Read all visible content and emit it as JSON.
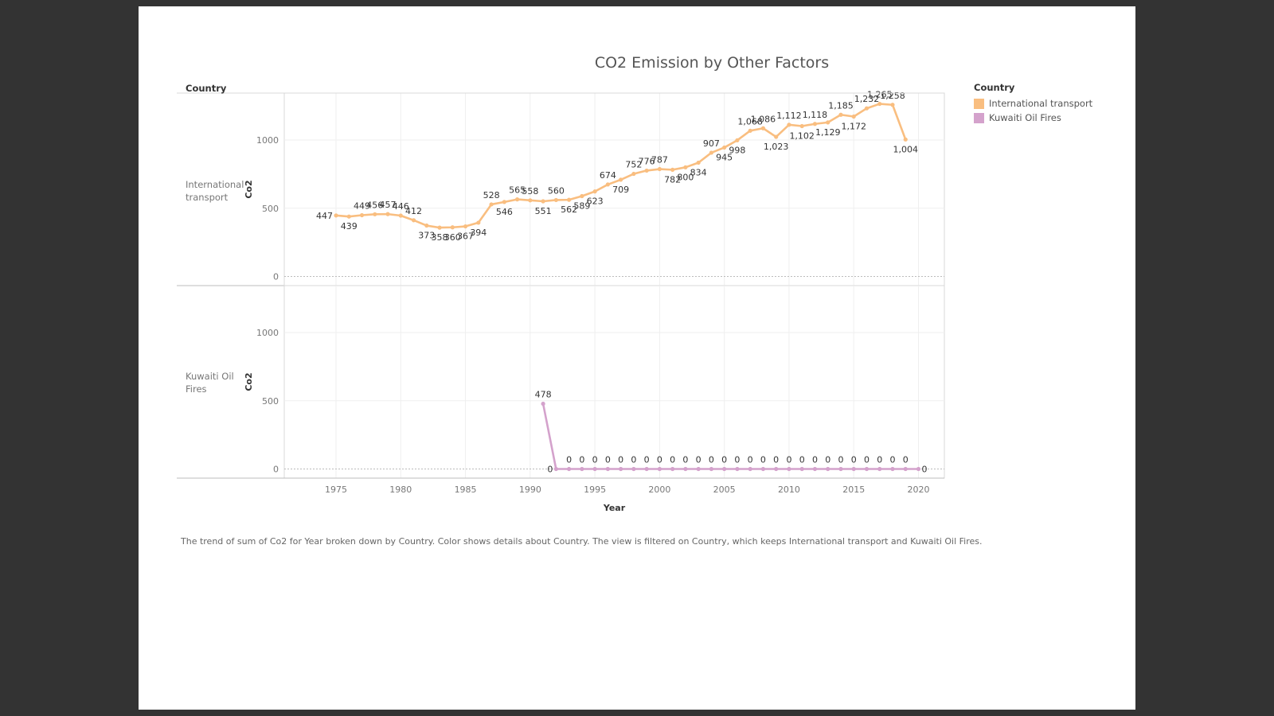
{
  "chart_data": {
    "type": "line",
    "title": "CO2 Emission by Other Factors",
    "xlabel": "Year",
    "ylabel": "Co2",
    "row_header": "Country",
    "x_ticks": [
      1975,
      1980,
      1985,
      1990,
      1995,
      2000,
      2005,
      2010,
      2015,
      2020
    ],
    "y_ticks": [
      0,
      500,
      1000
    ],
    "ylim": [
      0,
      1330
    ],
    "xlim": [
      1971,
      2022
    ],
    "grid": true,
    "legend": {
      "title": "Country",
      "position": "right",
      "items": [
        {
          "name": "International transport",
          "color": "#F9BE80"
        },
        {
          "name": "Kuwaiti Oil Fires",
          "color": "#D4A2CC"
        }
      ]
    },
    "panels": [
      {
        "row_label": "International transport",
        "series": [
          {
            "name": "International transport",
            "color": "#F9BE80",
            "x": [
              1975,
              1976,
              1977,
              1978,
              1979,
              1980,
              1981,
              1982,
              1983,
              1984,
              1985,
              1986,
              1987,
              1988,
              1989,
              1990,
              1991,
              1992,
              1993,
              1994,
              1995,
              1996,
              1997,
              1998,
              1999,
              2000,
              2001,
              2002,
              2003,
              2004,
              2005,
              2006,
              2007,
              2008,
              2009,
              2010,
              2011,
              2012,
              2013,
              2014,
              2015,
              2016,
              2017,
              2018,
              2019,
              2020
            ],
            "y": [
              447,
              439,
              449,
              456,
              457,
              446,
              412,
              373,
              358,
              360,
              367,
              394,
              528,
              546,
              565,
              558,
              551,
              560,
              562,
              589,
              623,
              674,
              709,
              752,
              776,
              787,
              782,
              800,
              834,
              907,
              945,
              998,
              1068,
              1086,
              1023,
              1112,
              1102,
              1118,
              1129,
              1185,
              1172,
              1232,
              1265,
              1258,
              1004,
              null
            ],
            "labels": [
              "447",
              "439",
              "449",
              "456",
              "457",
              "446",
              "412",
              "373",
              "358",
              "360",
              "367",
              "394",
              "528",
              "546",
              "565",
              "558",
              "551",
              "560",
              "562",
              "589",
              "623",
              "674",
              "709",
              "752",
              "776",
              "787",
              "782",
              "800",
              "834",
              "907",
              "945",
              "998",
              "1,068",
              "1,086",
              "1,023",
              "1,112",
              "1,102",
              "1,118",
              "1,129",
              "1,185",
              "1,172",
              "1,232",
              "1,265",
              "1,258",
              "1,004",
              ""
            ]
          }
        ]
      },
      {
        "row_label": "Kuwaiti Oil Fires",
        "series": [
          {
            "name": "Kuwaiti Oil Fires",
            "color": "#D4A2CC",
            "x": [
              1991,
              1992,
              1993,
              1994,
              1995,
              1996,
              1997,
              1998,
              1999,
              2000,
              2001,
              2002,
              2003,
              2004,
              2005,
              2006,
              2007,
              2008,
              2009,
              2010,
              2011,
              2012,
              2013,
              2014,
              2015,
              2016,
              2017,
              2018,
              2019,
              2020
            ],
            "y": [
              478,
              0,
              0,
              0,
              0,
              0,
              0,
              0,
              0,
              0,
              0,
              0,
              0,
              0,
              0,
              0,
              0,
              0,
              0,
              0,
              0,
              0,
              0,
              0,
              0,
              0,
              0,
              0,
              0,
              0
            ],
            "labels": [
              "478",
              "0",
              "0",
              "0",
              "0",
              "0",
              "0",
              "0",
              "0",
              "0",
              "0",
              "0",
              "0",
              "0",
              "0",
              "0",
              "0",
              "0",
              "0",
              "0",
              "0",
              "0",
              "0",
              "0",
              "0",
              "0",
              "0",
              "0",
              "0",
              "0"
            ]
          }
        ]
      }
    ],
    "caption": "The trend of sum of Co2 for Year broken down by Country.  Color shows details about Country. The view is filtered on Country, which keeps International transport and Kuwaiti Oil Fires."
  }
}
